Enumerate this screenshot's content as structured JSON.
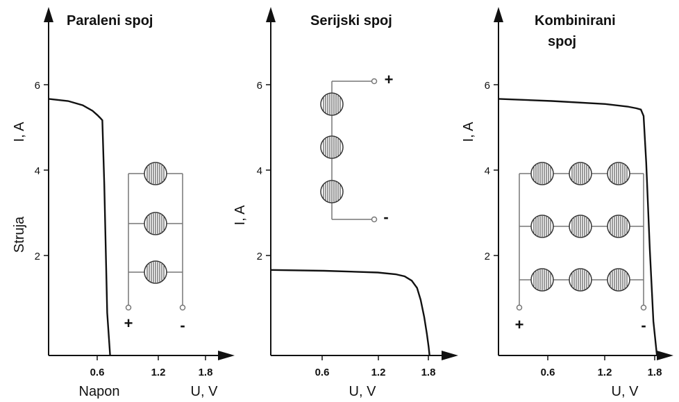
{
  "chart_data": [
    {
      "type": "line",
      "title": "Paraleni spoj",
      "ylabel": "I,  A",
      "ylabel_extra": "Struja",
      "xlabel": "U,  V",
      "xlabel_extra": "Napon",
      "xticks": [
        "0.6",
        "1.2",
        "1.8"
      ],
      "yticks": [
        "2",
        "4",
        "6"
      ],
      "xlim": [
        0,
        2.0
      ],
      "ylim": [
        0,
        6.7
      ],
      "x": [
        0,
        0.2,
        0.35,
        0.45,
        0.5,
        0.53,
        0.55,
        0.57,
        0.6,
        0.63
      ],
      "y": [
        6.0,
        5.95,
        5.85,
        5.72,
        5.62,
        5.55,
        5.5,
        4.0,
        1.0,
        0.0
      ],
      "circuit": {
        "plus": "+",
        "minus": "-"
      }
    },
    {
      "type": "line",
      "title": "Serijski spoj",
      "ylabel": "I,  A",
      "xlabel": "U,  V",
      "xticks": [
        "0.6",
        "1.2",
        "1.8"
      ],
      "yticks": [
        "2",
        "4",
        "6"
      ],
      "xlim": [
        0,
        2.0
      ],
      "ylim": [
        0,
        6.7
      ],
      "x": [
        0,
        0.6,
        1.2,
        1.4,
        1.5,
        1.58,
        1.64,
        1.68,
        1.72,
        1.75,
        1.77,
        1.78
      ],
      "y": [
        2.0,
        1.98,
        1.94,
        1.9,
        1.85,
        1.75,
        1.58,
        1.3,
        0.9,
        0.5,
        0.2,
        0.0
      ],
      "circuit": {
        "plus": "+",
        "minus": "-"
      }
    },
    {
      "type": "line",
      "title": "Kombinirani spoj",
      "ylabel": "I,  A",
      "xlabel": "U,  V",
      "xticks": [
        "0.6",
        "1.2",
        "1.8"
      ],
      "yticks": [
        "2",
        "4",
        "6"
      ],
      "xlim": [
        0,
        2.0
      ],
      "ylim": [
        0,
        6.7
      ],
      "x": [
        0,
        0.6,
        1.2,
        1.45,
        1.55,
        1.6,
        1.63,
        1.66,
        1.7,
        1.74,
        1.78
      ],
      "y": [
        6.0,
        5.95,
        5.88,
        5.82,
        5.78,
        5.75,
        5.6,
        4.5,
        2.5,
        0.8,
        0.0
      ],
      "circuit": {
        "plus": "+",
        "minus": "-"
      }
    }
  ]
}
